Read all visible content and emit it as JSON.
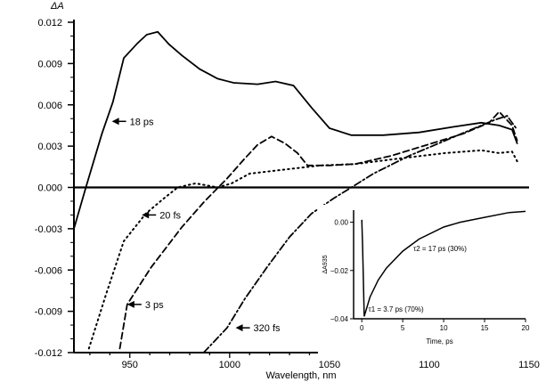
{
  "chart_data": [
    {
      "type": "line",
      "title": "",
      "xlabel": "Wavelength, nm",
      "ylabel": "ΔA",
      "xlim": [
        922,
        1150
      ],
      "ylim": [
        -0.012,
        0.012
      ],
      "xticks": [
        950,
        1000,
        1050,
        1100,
        1150
      ],
      "yticks": [
        -0.012,
        -0.009,
        -0.006,
        -0.003,
        0.0,
        0.003,
        0.006,
        0.009,
        0.012
      ],
      "ytick_labels": [
        "-0.012",
        "-0.009",
        "-0.006",
        "-0.003",
        "0.000",
        "0.003",
        "0.006",
        "0.009",
        "0.012"
      ],
      "grid": false,
      "zero_line": true,
      "series": [
        {
          "name": "18 ps",
          "style": "solid",
          "annotation_at": [
            941,
            0.0048
          ],
          "x": [
            922,
            928,
            936,
            941.5,
            947,
            954,
            958.5,
            964,
            969.6,
            976,
            985,
            994,
            1002,
            1014,
            1023,
            1032,
            1041,
            1050,
            1061,
            1077,
            1095,
            1112,
            1126,
            1135,
            1141.5,
            1144
          ],
          "y": [
            -0.003,
            0,
            0.0039,
            0.0062,
            0.0094,
            0.0105,
            0.0111,
            0.0113,
            0.0104,
            0.0096,
            0.0086,
            0.0079,
            0.0076,
            0.0075,
            0.0077,
            0.0074,
            0.0058,
            0.0043,
            0.0038,
            0.0038,
            0.004,
            0.0044,
            0.0047,
            0.0045,
            0.0042,
            0.0032
          ]
        },
        {
          "name": "20 fs",
          "style": "dotted",
          "annotation_at": [
            956,
            -0.002
          ],
          "x": [
            929.5,
            938,
            947,
            958,
            967,
            974,
            983,
            994,
            1001,
            1010,
            1027.7,
            1045.5,
            1063,
            1085,
            1108,
            1126,
            1135,
            1141.5,
            1144
          ],
          "y": [
            -0.0117,
            -0.0078,
            -0.0039,
            -0.0019,
            -0.0008,
            0,
            0.0003,
            0,
            0.0003,
            0.001,
            0.0013,
            0.0016,
            0.0017,
            0.0021,
            0.0025,
            0.0027,
            0.0025,
            0.0026,
            0.0019
          ]
        },
        {
          "name": "3 ps",
          "style": "dashed",
          "annotation_at": [
            948.7,
            -0.0085
          ],
          "x": [
            945,
            948.7,
            960.7,
            976,
            987.5,
            998.7,
            1007.6,
            1014,
            1021,
            1027.7,
            1034,
            1039,
            1050,
            1063,
            1081,
            1099,
            1117,
            1130,
            1135,
            1141.5,
            1144
          ],
          "y": [
            -0.0117,
            -0.0085,
            -0.0058,
            -0.0029,
            -0.001,
            0.00065,
            0.0021,
            0.0031,
            0.0037,
            0.0032,
            0.0025,
            0.0016,
            0.0016,
            0.0017,
            0.0023,
            0.0031,
            0.0039,
            0.0047,
            0.0055,
            0.0045,
            0.0034
          ]
        },
        {
          "name": "320 fs",
          "style": "dashdot",
          "annotation_at": [
            1003,
            -0.0102
          ],
          "x": [
            987,
            998.7,
            1007.6,
            1018.7,
            1030,
            1041,
            1052,
            1061,
            1072,
            1090,
            1108,
            1121,
            1132.6,
            1139,
            1144
          ],
          "y": [
            -0.012,
            -0.0102,
            -0.0081,
            -0.0058,
            -0.0036,
            -0.0019,
            -0.0008,
            0,
            0.001,
            0.0023,
            0.0034,
            0.0042,
            0.0049,
            0.0052,
            0.0042
          ]
        }
      ]
    },
    {
      "type": "line",
      "title": "",
      "xlabel": "Time, ps",
      "ylabel": "ΔA935",
      "xlim": [
        -1,
        20
      ],
      "ylim": [
        -0.04,
        0.005
      ],
      "xticks": [
        0,
        5,
        10,
        15,
        20
      ],
      "yticks": [
        -0.04,
        -0.02,
        0.0
      ],
      "ytick_labels": [
        "−0.04",
        "−0.02",
        "0.00"
      ],
      "annotations": [
        "τ1 = 3.7 ps (70%)",
        "τ2 = 17 ps (30%)"
      ],
      "series": [
        {
          "x": [
            0,
            0.1,
            0.3,
            1,
            2,
            3,
            5,
            7,
            10,
            12,
            15,
            18,
            20
          ],
          "y": [
            0.001,
            -0.01,
            -0.039,
            -0.031,
            -0.024,
            -0.019,
            -0.012,
            -0.007,
            -0.002,
            0,
            0.002,
            0.004,
            0.0045
          ]
        }
      ]
    }
  ]
}
